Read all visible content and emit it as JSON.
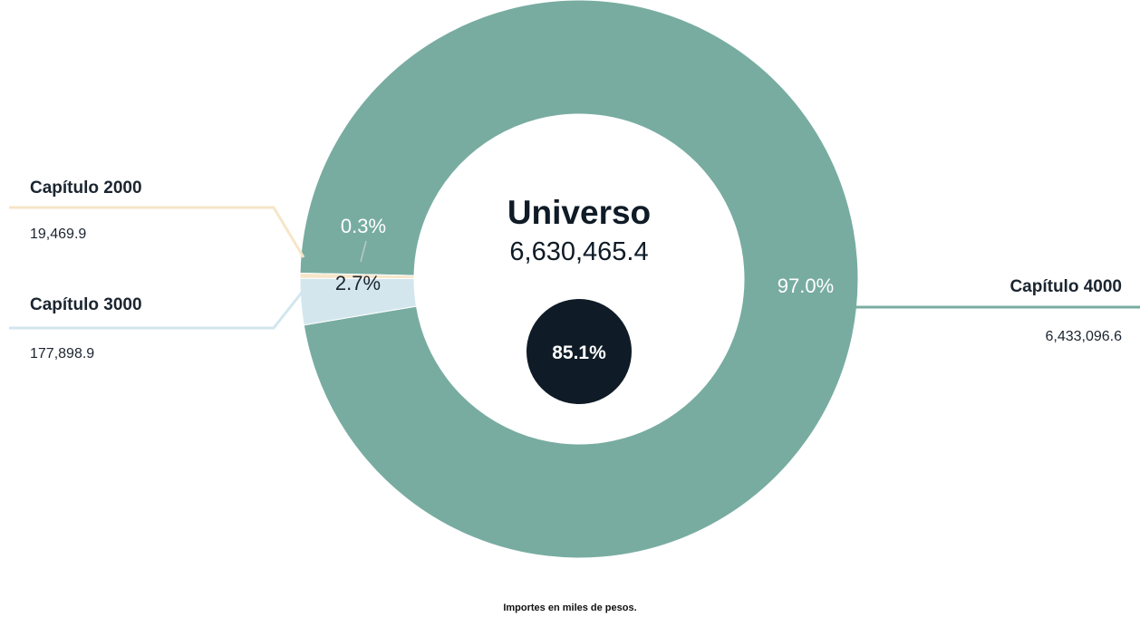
{
  "chart_data": {
    "type": "pie",
    "variant": "donut",
    "center_title": "Universo",
    "center_total": "6,630,465.4",
    "center_badge": "85.1%",
    "slices": [
      {
        "name": "Capítulo 4000",
        "value": 6433096.6,
        "value_label": "6,433,096.6",
        "percent": 97.0,
        "percent_label": "97.0%",
        "color": "#78aca1",
        "pct_color": "#ffffff"
      },
      {
        "name": "Capítulo 2000",
        "value": 19469.9,
        "value_label": "19,469.9",
        "percent": 0.3,
        "percent_label": "0.3%",
        "color": "#f6e6c8",
        "pct_color": "#ffffff"
      },
      {
        "name": "Capítulo 3000",
        "value": 177898.9,
        "value_label": "177,898.9",
        "percent": 2.7,
        "percent_label": "2.7%",
        "color": "#d3e6ee",
        "pct_color": "#1b2530"
      }
    ],
    "badge_color": "#0f1b26"
  },
  "footnote": "Importes en miles de pesos."
}
